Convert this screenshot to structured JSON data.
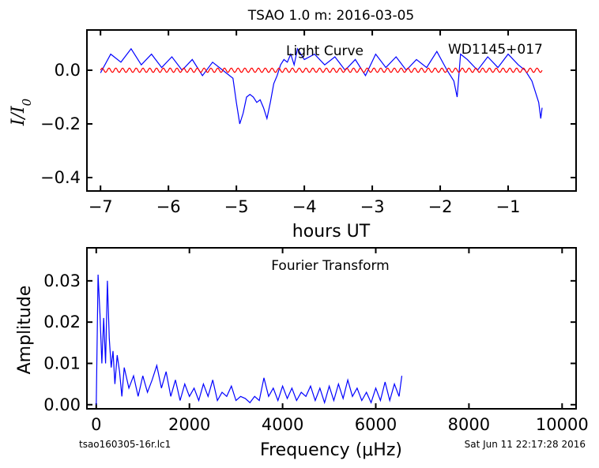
{
  "figure_title": "TSAO 1.0 m:  2016-03-05",
  "footer_left": "tsao160305-16r.lc1",
  "footer_right": "Sat Jun 11 22:17:28 2016",
  "colors": {
    "data_line": "#0000ff",
    "fit_line": "#ff0000",
    "axes": "#000000"
  },
  "chart_data": [
    {
      "type": "line",
      "annotation_left": "Light Curve",
      "annotation_right": "WD1145+017",
      "xlabel": "hours UT",
      "ylabel": "I/I0",
      "xlim": [
        -7.2,
        -0.0
      ],
      "ylim": [
        -0.45,
        0.15
      ],
      "xticks": [
        -7,
        -6,
        -5,
        -4,
        -3,
        -2,
        -1
      ],
      "xtick_labels": [
        "−7",
        "−6",
        "−5",
        "−4",
        "−3",
        "−2",
        "−1"
      ],
      "yticks": [
        0.0,
        -0.2,
        -0.4
      ],
      "ytick_labels": [
        "0.0",
        "−0.2",
        "−0.4"
      ],
      "series": [
        {
          "role": "data",
          "x": [
            -7.0,
            -6.85,
            -6.7,
            -6.55,
            -6.4,
            -6.25,
            -6.1,
            -5.95,
            -5.8,
            -5.65,
            -5.5,
            -5.35,
            -5.2,
            -5.05,
            -5.0,
            -4.95,
            -4.9,
            -4.85,
            -4.8,
            -4.75,
            -4.7,
            -4.65,
            -4.6,
            -4.55,
            -4.5,
            -4.45,
            -4.4,
            -4.35,
            -4.3,
            -4.25,
            -4.2,
            -4.15,
            -4.1,
            -4.0,
            -3.85,
            -3.7,
            -3.55,
            -3.4,
            -3.25,
            -3.1,
            -2.95,
            -2.8,
            -2.65,
            -2.5,
            -2.35,
            -2.2,
            -2.05,
            -1.9,
            -1.8,
            -1.75,
            -1.7,
            -1.6,
            -1.45,
            -1.3,
            -1.15,
            -1.0,
            -0.85,
            -0.75,
            -0.65,
            -0.6,
            -0.55,
            -0.52,
            -0.5
          ],
          "y": [
            -0.01,
            0.06,
            0.03,
            0.08,
            0.02,
            0.06,
            0.01,
            0.05,
            0.0,
            0.04,
            -0.02,
            0.03,
            0.0,
            -0.03,
            -0.12,
            -0.2,
            -0.16,
            -0.1,
            -0.09,
            -0.1,
            -0.12,
            -0.11,
            -0.14,
            -0.18,
            -0.12,
            -0.05,
            -0.02,
            0.02,
            0.04,
            0.03,
            0.06,
            0.02,
            0.08,
            0.04,
            0.06,
            0.02,
            0.05,
            0.0,
            0.04,
            -0.02,
            0.06,
            0.01,
            0.05,
            0.0,
            0.04,
            0.01,
            0.07,
            0.0,
            -0.04,
            -0.1,
            0.06,
            0.04,
            0.0,
            0.05,
            0.01,
            0.06,
            0.02,
            0.0,
            -0.04,
            -0.08,
            -0.12,
            -0.18,
            -0.14
          ]
        },
        {
          "role": "fit",
          "x_start": -7.0,
          "x_end": -0.5,
          "amplitude": 0.008,
          "period_hours": 0.1
        }
      ]
    },
    {
      "type": "line",
      "annotation": "Fourier Transform",
      "xlabel": "Frequency (μHz)",
      "ylabel": "Amplitude",
      "xlim": [
        -200,
        10300
      ],
      "ylim": [
        -0.001,
        0.038
      ],
      "xticks": [
        0,
        2000,
        4000,
        6000,
        8000,
        10000
      ],
      "xtick_labels": [
        "0",
        "2000",
        "4000",
        "6000",
        "8000",
        "10000"
      ],
      "yticks": [
        0.0,
        0.01,
        0.02,
        0.03
      ],
      "ytick_labels": [
        "0.00",
        "0.01",
        "0.02",
        "0.03"
      ],
      "series": [
        {
          "role": "data",
          "x": [
            0,
            40,
            80,
            120,
            160,
            200,
            240,
            280,
            320,
            360,
            400,
            450,
            500,
            550,
            600,
            700,
            800,
            900,
            1000,
            1100,
            1200,
            1300,
            1400,
            1500,
            1600,
            1700,
            1800,
            1900,
            2000,
            2100,
            2200,
            2300,
            2400,
            2500,
            2600,
            2700,
            2800,
            2900,
            3000,
            3100,
            3200,
            3300,
            3400,
            3500,
            3600,
            3700,
            3800,
            3900,
            4000,
            4100,
            4200,
            4300,
            4400,
            4500,
            4600,
            4700,
            4800,
            4900,
            5000,
            5100,
            5200,
            5300,
            5400,
            5500,
            5600,
            5700,
            5800,
            5900,
            6000,
            6100,
            6200,
            6300,
            6400,
            6500,
            6560
          ],
          "y": [
            0.0,
            0.0315,
            0.022,
            0.01,
            0.021,
            0.01,
            0.03,
            0.016,
            0.009,
            0.013,
            0.005,
            0.012,
            0.008,
            0.002,
            0.009,
            0.004,
            0.007,
            0.002,
            0.007,
            0.003,
            0.006,
            0.0095,
            0.004,
            0.008,
            0.002,
            0.006,
            0.001,
            0.005,
            0.002,
            0.004,
            0.001,
            0.005,
            0.002,
            0.006,
            0.001,
            0.003,
            0.002,
            0.0045,
            0.001,
            0.002,
            0.0015,
            0.0005,
            0.002,
            0.001,
            0.0065,
            0.002,
            0.004,
            0.001,
            0.0045,
            0.0015,
            0.004,
            0.001,
            0.003,
            0.002,
            0.0045,
            0.001,
            0.004,
            0.0005,
            0.0045,
            0.001,
            0.005,
            0.0015,
            0.006,
            0.002,
            0.004,
            0.001,
            0.003,
            0.0005,
            0.004,
            0.001,
            0.0055,
            0.001,
            0.005,
            0.002,
            0.007
          ]
        }
      ]
    }
  ]
}
